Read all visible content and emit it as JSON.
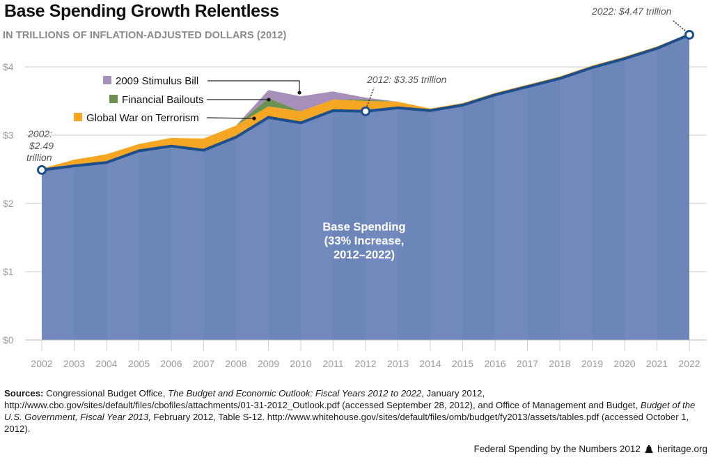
{
  "header": {
    "title": "Base Spending Growth Relentless",
    "subtitle": "IN TRILLIONS OF INFLATION-ADJUSTED DOLLARS (2012)"
  },
  "chart_data": {
    "type": "area",
    "title": "Base Spending Growth Relentless",
    "subtitle": "IN TRILLIONS OF INFLATION-ADJUSTED DOLLARS (2012)",
    "xlabel": "",
    "ylabel": "",
    "ylim": [
      0,
      4.6
    ],
    "yticks": [
      0,
      1,
      2,
      3,
      4
    ],
    "ytick_labels": [
      "$0",
      "$1",
      "$2",
      "$3",
      "$4"
    ],
    "grid": true,
    "stacked": true,
    "categories": [
      "2002",
      "2003",
      "2004",
      "2005",
      "2006",
      "2007",
      "2008",
      "2009",
      "2010",
      "2011",
      "2012",
      "2013",
      "2014",
      "2015",
      "2016",
      "2017",
      "2018",
      "2019",
      "2020",
      "2021",
      "2022"
    ],
    "series": [
      {
        "name": "Base Spending",
        "color": "#7189bd",
        "line_color": "#1d4f8c",
        "values": [
          2.49,
          2.55,
          2.6,
          2.77,
          2.84,
          2.78,
          2.97,
          3.26,
          3.18,
          3.36,
          3.35,
          3.4,
          3.36,
          3.44,
          3.59,
          3.71,
          3.83,
          3.99,
          4.12,
          4.27,
          4.47
        ]
      },
      {
        "name": "Global War on Terrorism",
        "color": "#f5a623",
        "values": [
          0.02,
          0.09,
          0.12,
          0.1,
          0.12,
          0.17,
          0.17,
          0.16,
          0.17,
          0.16,
          0.15,
          0.09,
          0.03,
          0.03,
          0.03,
          0.03,
          0.03,
          0.03,
          0.03,
          0.03,
          0.02
        ]
      },
      {
        "name": "Financial Bailouts",
        "color": "#6a9150",
        "values": [
          0,
          0,
          0,
          0,
          0,
          0,
          0,
          0.12,
          0.0,
          0.0,
          0.02,
          0.0,
          0,
          0,
          0,
          0,
          0,
          0,
          0,
          0,
          0
        ]
      },
      {
        "name": "2009 Stimulus Bill",
        "color": "#a68fb8",
        "values": [
          0,
          0,
          0,
          0,
          0,
          0,
          0,
          0.12,
          0.22,
          0.12,
          0.03,
          0.0,
          0,
          0,
          0,
          0,
          0,
          0,
          0,
          0,
          0
        ]
      }
    ],
    "legend": {
      "placement": "top-left",
      "entries": [
        "2009 Stimulus Bill",
        "Financial Bailouts",
        "Global War on Terrorism"
      ]
    },
    "annotations": [
      {
        "year": "2002",
        "value": 2.49,
        "lines": [
          "2002:",
          "$2.49",
          "trillion"
        ]
      },
      {
        "year": "2012",
        "value": 3.35,
        "text": "2012: $3.35 trillion"
      },
      {
        "year": "2022",
        "value": 4.47,
        "text": "2022: $4.47 trillion"
      },
      {
        "text_lines": [
          "Base Spending",
          "(33% Increase,",
          "2012–2022)"
        ]
      }
    ]
  },
  "footer": {
    "sources_label": "Sources:",
    "sources_part1": " Congressional Budget Office, ",
    "sources_italic1": "The Budget and Economic Outlook: Fiscal Years 2012 to 2022",
    "sources_part2": ", January 2012, http://www.cbo.gov/sites/default/files/cbofiles/attachments/01-31-2012_Outlook.pdf (accessed September 28, 2012), and Office of Management and Budget, ",
    "sources_italic2": "Budget of the U.S. Government, Fiscal Year 2013,",
    "sources_part3": " February 2012, Table S-12. http://www.whitehouse.gov/sites/default/files/omb/budget/fy2013/assets/tables.pdf (accessed October 1, 2012).",
    "publication": "Federal Spending by the Numbers 2012",
    "site": "heritage.org"
  }
}
